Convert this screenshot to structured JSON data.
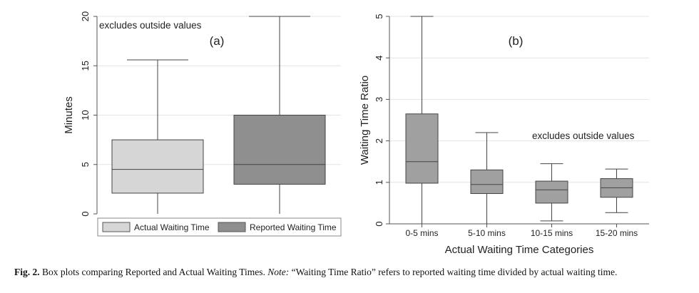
{
  "chart_data": [
    {
      "type": "box",
      "panel_label": "(a)",
      "annotation": "excludes outside values",
      "ylabel": "Minutes",
      "xlabel": "",
      "ylim": [
        0,
        20
      ],
      "yticks": [
        "0",
        "5",
        "10",
        "15",
        "20"
      ],
      "legend_position": "bottom",
      "series": [
        {
          "name": "Actual Waiting Time",
          "min": 0,
          "q1": 2.1,
          "median": 4.5,
          "q3": 7.5,
          "max": 15.6,
          "color": "#d6d6d6"
        },
        {
          "name": "Reported Waiting Time",
          "min": 0,
          "q1": 3.0,
          "median": 5.0,
          "q3": 10.0,
          "max": 20.0,
          "color": "#8f8f8f"
        }
      ]
    },
    {
      "type": "box",
      "panel_label": "(b)",
      "annotation": "excludes outside values",
      "ylabel": "Waiting Time Ratio",
      "xlabel": "Actual Waiting Time Categories",
      "ylim": [
        0,
        5
      ],
      "yticks": [
        "0",
        "1",
        "2",
        "3",
        "4",
        "5"
      ],
      "categories": [
        "0-5 mins",
        "5-10 mins",
        "10-15 mins",
        "15-20 mins"
      ],
      "series": [
        {
          "category": "0-5 mins",
          "min": 0,
          "q1": 0.98,
          "median": 1.5,
          "q3": 2.65,
          "max": 5.0
        },
        {
          "category": "5-10 mins",
          "min": 0,
          "q1": 0.73,
          "median": 0.95,
          "q3": 1.3,
          "max": 2.2
        },
        {
          "category": "10-15 mins",
          "min": 0.07,
          "q1": 0.5,
          "median": 0.82,
          "q3": 1.03,
          "max": 1.45
        },
        {
          "category": "15-20 mins",
          "min": 0.27,
          "q1": 0.64,
          "median": 0.87,
          "q3": 1.09,
          "max": 1.32
        }
      ],
      "color": "#a0a0a0"
    }
  ],
  "caption": {
    "label": "Fig. 2.",
    "text": "Box plots comparing Reported and Actual Waiting Times.",
    "note_label": "Note:",
    "note_text": "“Waiting Time Ratio” refers to reported waiting time divided by actual waiting time."
  }
}
